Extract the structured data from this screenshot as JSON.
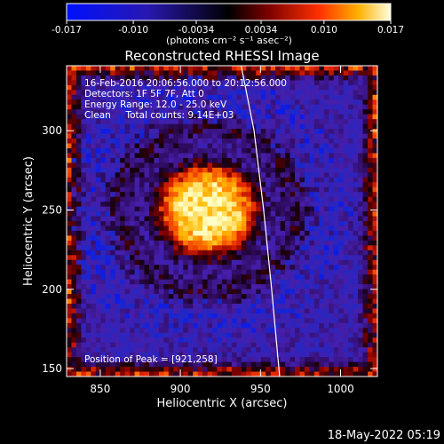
{
  "chart_data": {
    "type": "heatmap",
    "title": "Reconstructed RHESSI Image",
    "xlabel": "Heliocentric X (arcsec)",
    "ylabel": "Heliocentric Y (arcsec)",
    "xlim": [
      829,
      1023
    ],
    "ylim": [
      145,
      341
    ],
    "xticks": [
      850,
      900,
      950,
      1000
    ],
    "yticks": [
      150,
      200,
      250,
      300
    ],
    "colorbar": {
      "min": -0.017,
      "max": 0.017,
      "ticks": [
        "-0.017",
        "-0.010",
        "-0.0034",
        "0.0034",
        "0.010",
        "0.017"
      ],
      "tick_values": [
        -0.017,
        -0.01,
        -0.0034,
        0.0034,
        0.01,
        0.017
      ],
      "unit_text": "(photons cm⁻² s⁻¹ asec⁻²)"
    },
    "info_lines": [
      "16-Feb-2016 20:06:56.000 to 20:12:56.000",
      "Detectors: 1F 5F 7F, Att 0",
      "Energy Range: 12.0 - 25.0 keV",
      "Clean     Total counts: 9.14E+03"
    ],
    "peak_label": "Position of Peak = [921,258]",
    "peak": [
      921,
      258
    ],
    "limb": [
      [
        938,
        341
      ],
      [
        946,
        300
      ],
      [
        952,
        250
      ],
      [
        957,
        200
      ],
      [
        962,
        145
      ]
    ],
    "grid": false
  },
  "footer": {
    "date": "18-May-2022 05:19"
  },
  "colors": {
    "background": "#000000",
    "text": "#ffffff",
    "limb": "#ffffff"
  }
}
